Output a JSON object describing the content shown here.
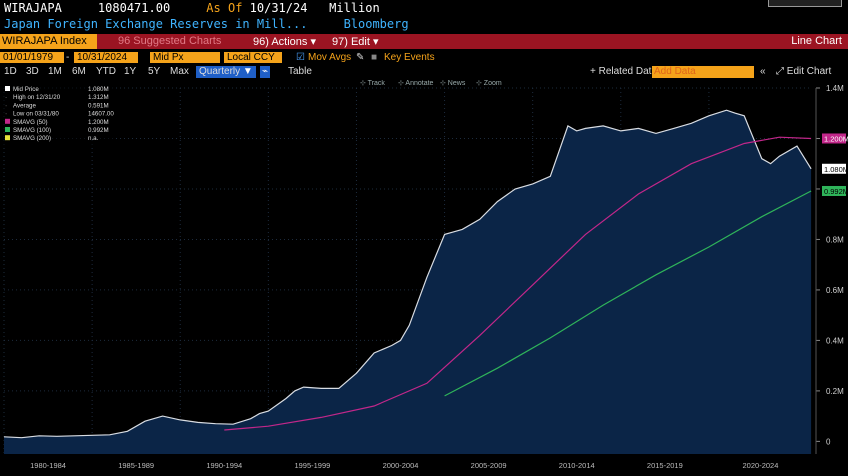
{
  "header": {
    "ticker": "WIRAJAPA",
    "last_value": "1080471.00",
    "as_of_label": "As Of",
    "as_of_date": "10/31/24",
    "units": "Million",
    "description": "Japan Foreign Exchange Reserves in Mill...",
    "source": "Bloomberg"
  },
  "toolbar": {
    "security": "WIRAJAPA Index",
    "suggested_charts": "96 Suggested Charts",
    "actions": "96) Actions",
    "edit": "97) Edit",
    "chart_type": "Line Chart"
  },
  "settings": {
    "start_date": "01/01/1979",
    "end_date": "10/31/2024",
    "price_field": "Mid Px",
    "currency": "Local CCY",
    "mov_avgs": "Mov Avgs",
    "key_events": "Key Events",
    "related_data": "+ Related Dat",
    "add_data_placeholder": "Add Data",
    "edit_chart": "Edit Chart"
  },
  "periods": [
    "1D",
    "3D",
    "1M",
    "6M",
    "YTD",
    "1Y",
    "5Y",
    "Max"
  ],
  "frequency": "Quarterly",
  "table_label": "Table",
  "chart_tools": [
    "Track",
    "Annotate",
    "News",
    "Zoom"
  ],
  "colors": {
    "area_fill": "#0b2547",
    "price_line": "#d9dde3",
    "sma50": "#c2278a",
    "sma100": "#2fb45a",
    "sma200": "#e8e23a",
    "accent_orange": "#f5a31a",
    "menubar_red": "#9b1422"
  },
  "chart_data": {
    "type": "area",
    "x_ticks": [
      "1980-1984",
      "1985-1989",
      "1990-1994",
      "1995-1999",
      "2000-2004",
      "2005-2009",
      "2010-2014",
      "2015-2019",
      "2020-2024"
    ],
    "y_ticks": [
      "0",
      "0.2M",
      "0.4M",
      "0.6M",
      "0.8M",
      "1.0M",
      "1.2M",
      "1.4M"
    ],
    "ylim": [
      -50000,
      1400000
    ],
    "xlim": [
      1979.0,
      2024.85
    ],
    "legend": [
      {
        "name": "Mid Price",
        "value": "1.080M"
      },
      {
        "name": "High on 12/31/20",
        "value": "1.312M"
      },
      {
        "name": "Average",
        "value": "0.591M"
      },
      {
        "name": "Low on 03/31/80",
        "value": "14607.00"
      },
      {
        "name": "SMAVG (50)",
        "value": "1.200M"
      },
      {
        "name": "SMAVG (100)",
        "value": "0.992M"
      },
      {
        "name": "SMAVG (200)",
        "value": "n.a."
      }
    ],
    "right_labels": {
      "sma50": "1.200M",
      "price": "1.080M",
      "sma100": "0.992M"
    },
    "series": [
      {
        "name": "Mid Price",
        "x": [
          1979,
          1980,
          1981,
          1982,
          1983,
          1984,
          1985,
          1986,
          1987,
          1988,
          1989,
          1990,
          1991,
          1992,
          1993,
          1993.5,
          1994,
          1995,
          1995.5,
          1996,
          1997,
          1998,
          1999,
          2000,
          2001,
          2001.5,
          2002,
          2003,
          2004,
          2004.5,
          2005,
          2006,
          2007,
          2008,
          2009,
          2010,
          2011,
          2011.5,
          2012,
          2013,
          2014,
          2015,
          2016,
          2017,
          2018,
          2019,
          2020,
          2020.5,
          2021,
          2022,
          2022.5,
          2023,
          2024,
          2024.8
        ],
        "y": [
          18000,
          14607,
          22000,
          20000,
          22000,
          24000,
          26000,
          40000,
          80000,
          100000,
          85000,
          75000,
          70000,
          68000,
          90000,
          110000,
          120000,
          170000,
          200000,
          215000,
          210000,
          210000,
          270000,
          350000,
          380000,
          400000,
          460000,
          650000,
          820000,
          830000,
          840000,
          880000,
          950000,
          1000000,
          1020000,
          1050000,
          1250000,
          1230000,
          1240000,
          1250000,
          1230000,
          1240000,
          1220000,
          1240000,
          1260000,
          1290000,
          1312000,
          1300000,
          1290000,
          1120000,
          1100000,
          1130000,
          1170000,
          1080000
        ]
      },
      {
        "name": "SMAVG (50)",
        "x": [
          1991.5,
          1994,
          1997,
          2000,
          2003,
          2006,
          2009,
          2012,
          2015,
          2018,
          2021,
          2023,
          2024.8
        ],
        "y": [
          45000,
          60000,
          95000,
          140000,
          230000,
          420000,
          620000,
          820000,
          980000,
          1100000,
          1180000,
          1205000,
          1200000
        ]
      },
      {
        "name": "SMAVG (100)",
        "x": [
          2004,
          2007,
          2010,
          2013,
          2016,
          2019,
          2022,
          2024.8
        ],
        "y": [
          180000,
          290000,
          410000,
          540000,
          660000,
          770000,
          890000,
          992000
        ]
      }
    ]
  }
}
